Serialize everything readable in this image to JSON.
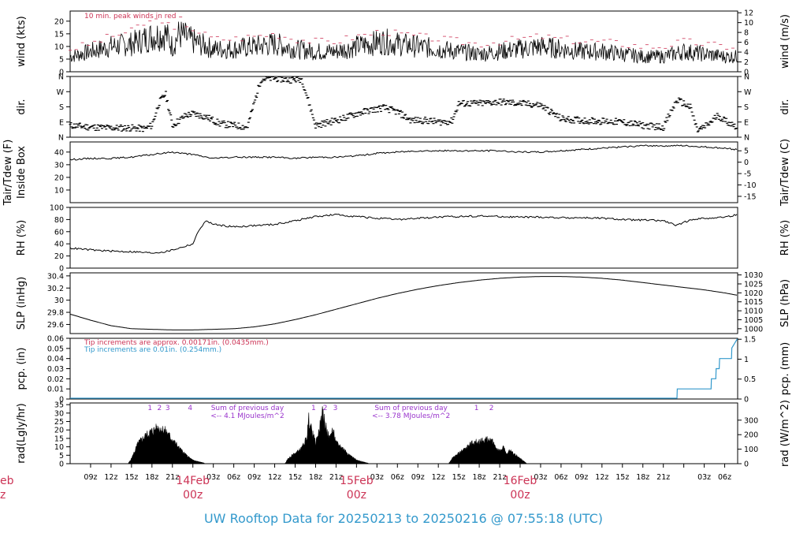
{
  "colors": {
    "axis": "#000000",
    "trace": "#000000",
    "peak_wind": "#cc3355",
    "pcp_fine": "#cc3355",
    "pcp_coarse": "#3399cc",
    "note": "#9933cc",
    "date_label": "#cc3355",
    "footer": "#3399cc"
  },
  "footer": {
    "title": "UW Rooftop Data for 20250213  to  20250216 @ 07:55:18  (UTC)"
  },
  "chart_data": [
    {
      "name": "wind",
      "type": "line",
      "ylabel": "wind (kts)",
      "ylabel_right": "wind (m/s)",
      "ylim": [
        0,
        24
      ],
      "yticks": [
        0,
        5,
        10,
        15,
        20
      ],
      "ylim_right": [
        0,
        12.35
      ],
      "yticks_right": [
        0,
        2,
        4,
        6,
        8,
        10,
        12
      ],
      "annotation": "10 min. peak winds in red",
      "hours": [
        6,
        9,
        12,
        15,
        16,
        18,
        20,
        21,
        22,
        24,
        27,
        30,
        33,
        36,
        39,
        42,
        45,
        48,
        50,
        52,
        54,
        57,
        60,
        63,
        66,
        69,
        72,
        75,
        78,
        81,
        84,
        87,
        90,
        93,
        96,
        99,
        102,
        103.9
      ],
      "values": [
        6,
        8,
        10,
        11,
        12,
        14,
        15,
        10,
        15,
        12,
        9,
        9,
        10,
        11,
        9,
        8,
        8,
        10,
        11,
        12,
        11,
        10,
        9,
        8,
        7,
        8,
        9,
        10,
        9,
        8,
        8,
        7,
        6,
        6,
        8,
        7,
        6,
        6
      ],
      "peak_values": [
        9,
        11,
        14,
        16,
        18,
        20,
        21,
        14,
        21,
        17,
        13,
        13,
        14,
        15,
        13,
        12,
        12,
        14,
        15,
        16,
        15,
        14,
        13,
        12,
        11,
        12,
        13,
        14,
        13,
        12,
        12,
        11,
        10,
        10,
        12,
        11,
        10,
        10
      ]
    },
    {
      "name": "dir",
      "type": "scatter",
      "ylabel": "dir.",
      "ylabel_right": "dir.",
      "ylim": [
        0,
        360
      ],
      "ytick_labels": [
        "N",
        "E",
        "S",
        "W",
        "N"
      ],
      "yticks": [
        0,
        90,
        180,
        270,
        360
      ],
      "hours": [
        6,
        9,
        12,
        15,
        17,
        18,
        19,
        20,
        21,
        22,
        23,
        24,
        26,
        28,
        30,
        32,
        34,
        36,
        38,
        40,
        42,
        44,
        46,
        48,
        50,
        52,
        54,
        56,
        58,
        60,
        62,
        63,
        66,
        69,
        72,
        75,
        78,
        79,
        81,
        84,
        87,
        90,
        93,
        95,
        96,
        97,
        98,
        99,
        100,
        101,
        102,
        103.9
      ],
      "values": [
        70,
        60,
        55,
        55,
        50,
        70,
        200,
        260,
        70,
        100,
        130,
        140,
        120,
        80,
        70,
        60,
        345,
        350,
        340,
        345,
        70,
        90,
        110,
        140,
        160,
        175,
        150,
        100,
        100,
        90,
        95,
        200,
        200,
        210,
        200,
        190,
        110,
        105,
        100,
        95,
        90,
        70,
        60,
        220,
        200,
        175,
        40,
        60,
        90,
        130,
        100,
        60
      ]
    },
    {
      "name": "temperature",
      "type": "line",
      "ylabel": "Tair/Tdew (F)",
      "ylabel2": "Inside Box",
      "ylabel_right": "Tair/Tdew (C)",
      "ylim": [
        0,
        48
      ],
      "yticks": [
        10,
        20,
        30,
        40
      ],
      "ylim_right": [
        -17.78,
        8.89
      ],
      "yticks_right": [
        -15,
        -10,
        -5,
        0,
        5
      ],
      "hours": [
        6,
        9,
        12,
        15,
        18,
        21,
        24,
        27,
        30,
        33,
        36,
        39,
        42,
        45,
        48,
        51,
        54,
        57,
        60,
        63,
        66,
        69,
        72,
        75,
        78,
        81,
        84,
        87,
        90,
        93,
        96,
        99,
        102,
        103.9
      ],
      "values": [
        34,
        35,
        35,
        36,
        38,
        40,
        38,
        35,
        36,
        36,
        36,
        35,
        36,
        36,
        37,
        39,
        40,
        41,
        41,
        41,
        41,
        41,
        40,
        40,
        41,
        42,
        43,
        44,
        45,
        45,
        45,
        44,
        43,
        42
      ]
    },
    {
      "name": "rh",
      "type": "line",
      "ylabel": "RH (%)",
      "ylabel_right": "RH (%)",
      "ylim": [
        0,
        100
      ],
      "yticks": [
        0,
        20,
        40,
        60,
        80,
        100
      ],
      "hours": [
        6,
        9,
        12,
        15,
        18,
        20,
        22,
        24,
        25,
        26,
        27,
        30,
        33,
        36,
        39,
        42,
        45,
        48,
        51,
        54,
        57,
        60,
        63,
        66,
        69,
        72,
        75,
        78,
        81,
        84,
        87,
        90,
        93,
        95,
        96,
        97,
        99,
        102,
        103.9
      ],
      "values": [
        33,
        30,
        28,
        27,
        25,
        27,
        33,
        40,
        65,
        78,
        72,
        68,
        70,
        72,
        78,
        85,
        88,
        85,
        82,
        80,
        82,
        84,
        85,
        86,
        85,
        84,
        84,
        83,
        83,
        82,
        80,
        79,
        78,
        70,
        75,
        80,
        82,
        84,
        88
      ]
    },
    {
      "name": "slp",
      "type": "line",
      "ylabel": "SLP (inHg)",
      "ylabel_right": "SLP (hPa)",
      "ylim": [
        29.45,
        30.45
      ],
      "yticks": [
        29.6,
        29.8,
        30.0,
        30.2,
        30.4
      ],
      "ylim_right": [
        997.29,
        1031.16
      ],
      "yticks_right": [
        1000,
        1005,
        1010,
        1015,
        1020,
        1025,
        1030
      ],
      "hours": [
        6,
        9,
        12,
        15,
        18,
        21,
        24,
        27,
        30,
        33,
        36,
        39,
        42,
        45,
        48,
        51,
        54,
        57,
        60,
        63,
        66,
        69,
        72,
        75,
        78,
        81,
        84,
        87,
        90,
        93,
        96,
        99,
        102,
        103.9
      ],
      "values": [
        29.77,
        29.67,
        29.58,
        29.53,
        29.52,
        29.51,
        29.51,
        29.52,
        29.53,
        29.56,
        29.61,
        29.68,
        29.76,
        29.85,
        29.94,
        30.03,
        30.11,
        30.18,
        30.24,
        30.29,
        30.33,
        30.36,
        30.38,
        30.39,
        30.39,
        30.38,
        30.36,
        30.33,
        30.29,
        30.25,
        30.21,
        30.17,
        30.12,
        30.08
      ]
    },
    {
      "name": "pcp",
      "type": "line",
      "ylabel": "pcp. (in)",
      "ylabel_right": "pcp. (mm)",
      "ylim": [
        0,
        0.06
      ],
      "yticks": [
        0,
        0.01,
        0.02,
        0.03,
        0.04,
        0.05,
        0.06
      ],
      "ylim_right": [
        0,
        1.524
      ],
      "yticks_right": [
        0,
        0.5,
        1,
        1.5
      ],
      "annotation_fine": "Tip increments are approx. 0.00171in. (0.0435mm.)",
      "annotation_coarse": "Tip increments are 0.01in. (0.254mm.)",
      "hours": [
        6,
        95,
        95.01,
        100,
        100.01,
        100.7,
        100.71,
        101.2,
        101.21,
        103,
        103.01,
        103.9
      ],
      "values": [
        0,
        0,
        0.01,
        0.01,
        0.02,
        0.02,
        0.03,
        0.03,
        0.04,
        0.04,
        0.05,
        0.06
      ]
    },
    {
      "name": "rad",
      "type": "area",
      "ylabel": "rad(Lgly/hr)",
      "ylabel_right": "rad (W/m^2)",
      "ylim": [
        0,
        36
      ],
      "yticks": [
        0,
        5,
        10,
        15,
        20,
        25,
        30,
        35
      ],
      "ylim_right": [
        0,
        418.6
      ],
      "yticks_right": [
        0,
        100,
        200,
        300
      ],
      "hour_markers": [
        "1",
        "2",
        "3",
        "4",
        "1",
        "2",
        "3",
        "1",
        "2"
      ],
      "hour_marker_positions": [
        17.7,
        19.1,
        20.3,
        23.6,
        41.7,
        43.4,
        44.9,
        65.6,
        67.8
      ],
      "notes": [
        {
          "line1": "Sum of previous day",
          "line2": "<-- 4.1 MJoules/m^2",
          "hour": 32
        },
        {
          "line1": "Sum of previous day",
          "line2": "<-- 3.78 MJoules/m^2",
          "hour": 56
        }
      ],
      "hours": [
        6,
        14.5,
        15,
        16,
        17,
        18,
        19,
        20,
        21,
        22,
        23,
        24,
        25,
        26,
        37.5,
        38,
        39,
        40,
        40.7,
        41,
        41.5,
        42,
        42.5,
        43,
        43.5,
        44,
        44.5,
        45,
        46,
        47,
        48,
        49,
        50,
        61.5,
        62,
        63,
        64,
        65,
        66,
        67,
        68,
        68.5,
        69,
        69.5,
        70,
        70.5,
        71,
        72,
        73,
        103.9
      ],
      "values": [
        0,
        0,
        3,
        12,
        16,
        19,
        21,
        19,
        14,
        9,
        5,
        2,
        1,
        0,
        0,
        3,
        6,
        9,
        15,
        26,
        18,
        12,
        19,
        29,
        22,
        14,
        20,
        12,
        9,
        5,
        2,
        1,
        0,
        0,
        3,
        6,
        9,
        12,
        13,
        14,
        13,
        9,
        7,
        10,
        5,
        8,
        6,
        3,
        0,
        0
      ]
    }
  ],
  "x_axis": {
    "hour_range": [
      6,
      103.9
    ],
    "tick_hours": [
      9,
      12,
      15,
      18,
      21,
      24,
      27,
      30,
      33,
      36,
      39,
      42,
      45,
      48,
      51,
      54,
      57,
      60,
      63,
      66,
      69,
      72,
      75,
      78,
      81,
      84,
      87,
      90,
      93,
      96,
      99,
      102
    ],
    "tick_labels": [
      "09z",
      "12z",
      "15z",
      "18z",
      "21z",
      "",
      "03z",
      "06z",
      "09z",
      "12z",
      "15z",
      "18z",
      "21z",
      "",
      "03z",
      "06z",
      "09z",
      "12z",
      "15z",
      "18z",
      "21z",
      "",
      "03z",
      "06z",
      "09z",
      "12z",
      "15z",
      "18z",
      "21z",
      "",
      "03z",
      "06z"
    ],
    "date_labels": [
      {
        "line1": "14Feb",
        "line2": "00z",
        "hour": 24
      },
      {
        "line1": "15Feb",
        "line2": "00z",
        "hour": 48
      },
      {
        "line1": "16Feb",
        "line2": "00z",
        "hour": 72
      }
    ],
    "edge_label": {
      "line1": "eb",
      "line2": "z"
    }
  }
}
